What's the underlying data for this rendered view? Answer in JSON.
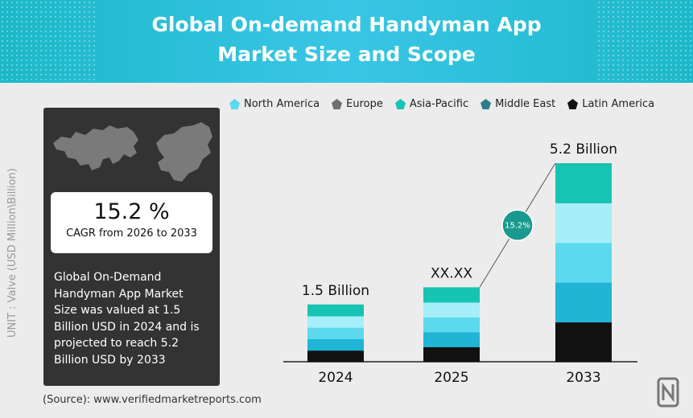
{
  "header": {
    "title_line1": "Global On-demand Handyman App",
    "title_line2": "Market Size and Scope"
  },
  "legend": [
    {
      "label": "North America",
      "color": "#5dd9ee",
      "icon": "pentagon-icon"
    },
    {
      "label": "Europe",
      "color": "#707070",
      "icon": "pentagon-icon"
    },
    {
      "label": "Asia-Pacific",
      "color": "#17c3b2",
      "icon": "pentagon-icon"
    },
    {
      "label": "Middle East",
      "color": "#2e7d8a",
      "icon": "pentagon-icon"
    },
    {
      "label": "Latin America",
      "color": "#111111",
      "icon": "pentagon-icon"
    }
  ],
  "unit_label": "UNIT : Valve (USD Million\\Billion)",
  "panel": {
    "map_icon": "world-map-icon",
    "cagr_value": "15.2 %",
    "cagr_label": "CAGR from 2026 to 2033",
    "description": "Global On-Demand Handyman App Market Size was valued at 1.5 Billion USD in 2024 and is projected to reach 5.2 Billion USD by 2033"
  },
  "source": "(Source): www.verifiedmarketreports.com",
  "chart_data": {
    "type": "bar",
    "stacked": true,
    "categories": [
      "2024",
      "2025",
      "2033"
    ],
    "totals": [
      1.5,
      1.95,
      5.2
    ],
    "value_labels": [
      "1.5 Billion",
      "XX.XX",
      "5.2 Billion"
    ],
    "series_colors": [
      "#111111",
      "#20b5d4",
      "#5dd9ee",
      "#a6eef8",
      "#17c3b2"
    ],
    "segments_per_bar": 5,
    "growth_badge": "15.2%",
    "badge_color": "#1a9a8e"
  }
}
